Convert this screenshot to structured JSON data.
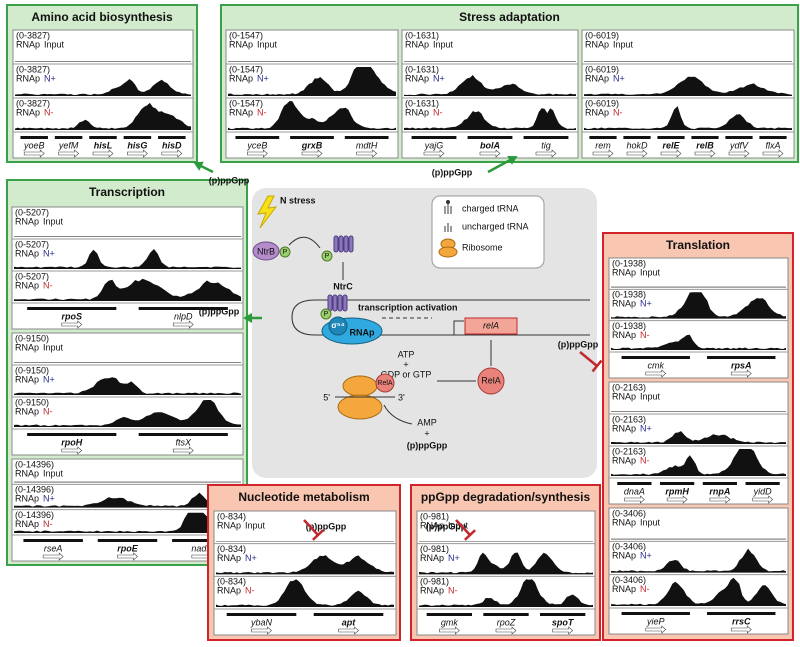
{
  "panels": [
    {
      "title": "Amino acid biosynthesis",
      "loci": [
        {
          "tracks": [
            {
              "range": "(0-3827)",
              "label": "RNAp",
              "condition": "Input"
            },
            {
              "range": "(0-3827)",
              "label": "RNAp",
              "condition": "N+"
            },
            {
              "range": "(0-3827)",
              "label": "RNAp",
              "condition": "N-"
            }
          ],
          "genes": [
            {
              "name": "yoeB",
              "bold": false
            },
            {
              "name": "yefM",
              "bold": false
            },
            {
              "name": "hisL",
              "bold": true
            },
            {
              "name": "hisG",
              "bold": true
            },
            {
              "name": "hisD",
              "bold": true
            }
          ]
        }
      ]
    },
    {
      "title": "Stress adaptation",
      "loci": [
        {
          "tracks": [
            {
              "range": "(0-1547)",
              "label": "RNAp",
              "condition": "Input"
            },
            {
              "range": "(0-1547)",
              "label": "RNAp",
              "condition": "N+"
            },
            {
              "range": "(0-1547)",
              "label": "RNAp",
              "condition": "N-"
            }
          ],
          "genes": [
            {
              "name": "yceB",
              "bold": false
            },
            {
              "name": "grxB",
              "bold": true
            },
            {
              "name": "mdtH",
              "bold": false
            }
          ]
        },
        {
          "tracks": [
            {
              "range": "(0-1631)",
              "label": "RNAp",
              "condition": "Input"
            },
            {
              "range": "(0-1631)",
              "label": "RNAp",
              "condition": "N+"
            },
            {
              "range": "(0-1631)",
              "label": "RNAp",
              "condition": "N-"
            }
          ],
          "genes": [
            {
              "name": "yajG",
              "bold": false
            },
            {
              "name": "bolA",
              "bold": true
            },
            {
              "name": "tig",
              "bold": false
            }
          ]
        },
        {
          "tracks": [
            {
              "range": "(0-6019)",
              "label": "RNAp",
              "condition": "Input"
            },
            {
              "range": "(0-6019)",
              "label": "RNAp",
              "condition": "N+"
            },
            {
              "range": "(0-6019)",
              "label": "RNAp",
              "condition": "N-"
            }
          ],
          "genes": [
            {
              "name": "rem",
              "bold": false
            },
            {
              "name": "hokD",
              "bold": false
            },
            {
              "name": "relE",
              "bold": true
            },
            {
              "name": "relB",
              "bold": true
            },
            {
              "name": "ydfV",
              "bold": false
            },
            {
              "name": "flxA",
              "bold": false
            }
          ]
        }
      ]
    },
    {
      "title": "Transcription",
      "loci": [
        {
          "tracks": [
            {
              "range": "(0-5207)",
              "label": "RNAp",
              "condition": "Input"
            },
            {
              "range": "(0-5207)",
              "label": "RNAp",
              "condition": "N+"
            },
            {
              "range": "(0-5207)",
              "label": "RNAp",
              "condition": "N-"
            }
          ],
          "genes": [
            {
              "name": "rpoS",
              "bold": true
            },
            {
              "name": "nlpD",
              "bold": false
            }
          ]
        },
        {
          "tracks": [
            {
              "range": "(0-9150)",
              "label": "RNAp",
              "condition": "Input"
            },
            {
              "range": "(0-9150)",
              "label": "RNAp",
              "condition": "N+"
            },
            {
              "range": "(0-9150)",
              "label": "RNAp",
              "condition": "N-"
            }
          ],
          "genes": [
            {
              "name": "rpoH",
              "bold": true
            },
            {
              "name": "ftsX",
              "bold": false
            }
          ]
        },
        {
          "tracks": [
            {
              "range": "(0-14396)",
              "label": "RNAp",
              "condition": "Input"
            },
            {
              "range": "(0-14396)",
              "label": "RNAp",
              "condition": "N+"
            },
            {
              "range": "(0-14396)",
              "label": "RNAp",
              "condition": "N-"
            }
          ],
          "genes": [
            {
              "name": "rseA",
              "bold": false
            },
            {
              "name": "rpoE",
              "bold": true
            },
            {
              "name": "nadB",
              "bold": false
            }
          ]
        }
      ]
    },
    {
      "title": "Translation",
      "loci": [
        {
          "tracks": [
            {
              "range": "(0-1938)",
              "label": "RNAp",
              "condition": "Input"
            },
            {
              "range": "(0-1938)",
              "label": "RNAp",
              "condition": "N+"
            },
            {
              "range": "(0-1938)",
              "label": "RNAp",
              "condition": "N-"
            }
          ],
          "genes": [
            {
              "name": "cmk",
              "bold": false
            },
            {
              "name": "rpsA",
              "bold": true
            }
          ]
        },
        {
          "tracks": [
            {
              "range": "(0-2163)",
              "label": "RNAp",
              "condition": "Input"
            },
            {
              "range": "(0-2163)",
              "label": "RNAp",
              "condition": "N+"
            },
            {
              "range": "(0-2163)",
              "label": "RNAp",
              "condition": "N-"
            }
          ],
          "genes": [
            {
              "name": "dnaA",
              "bold": false
            },
            {
              "name": "rpmH",
              "bold": true
            },
            {
              "name": "rnpA",
              "bold": true
            },
            {
              "name": "yidD",
              "bold": false
            }
          ]
        },
        {
          "tracks": [
            {
              "range": "(0-3406)",
              "label": "RNAp",
              "condition": "Input"
            },
            {
              "range": "(0-3406)",
              "label": "RNAp",
              "condition": "N+"
            },
            {
              "range": "(0-3406)",
              "label": "RNAp",
              "condition": "N-"
            }
          ],
          "genes": [
            {
              "name": "yieP",
              "bold": false
            },
            {
              "name": "rrsC",
              "bold": true
            }
          ]
        }
      ]
    },
    {
      "title": "Nucleotide metabolism",
      "loci": [
        {
          "tracks": [
            {
              "range": "(0-834)",
              "label": "RNAp",
              "condition": "Input"
            },
            {
              "range": "(0-834)",
              "label": "RNAp",
              "condition": "N+"
            },
            {
              "range": "(0-834)",
              "label": "RNAp",
              "condition": "N-"
            }
          ],
          "genes": [
            {
              "name": "ybaN",
              "bold": false
            },
            {
              "name": "apt",
              "bold": true
            }
          ]
        }
      ]
    },
    {
      "title": "ppGpp degradation/synthesis",
      "loci": [
        {
          "tracks": [
            {
              "range": "(0-981)",
              "label": "RNAp",
              "condition": "Input"
            },
            {
              "range": "(0-981)",
              "label": "RNAp",
              "condition": "N+"
            },
            {
              "range": "(0-981)",
              "label": "RNAp",
              "condition": "N-"
            }
          ],
          "genes": [
            {
              "name": "gmk",
              "bold": false
            },
            {
              "name": "rpoZ",
              "bold": false
            },
            {
              "name": "spoT",
              "bold": true
            }
          ]
        }
      ]
    }
  ],
  "signals": [
    "(p)ppGpp",
    "(p)ppGpp",
    "(p)ppGpp",
    "(p)ppGpp",
    "(p)ppGpp",
    "(p)ppGpp"
  ],
  "center": {
    "stress": "N stress",
    "ntrb": "NtrB",
    "p1": "P",
    "p2": "P",
    "ntrc1": "NtrC",
    "p3": "P",
    "sigma": "σ⁵⁴",
    "rnap": "RNAp",
    "activation": "transcription activation",
    "gene": "relA",
    "rela1": "RelA",
    "atp": "ATP",
    "plus1": "+",
    "gdp": "GDP or GTP",
    "rela2": "RelA",
    "five": "5'",
    "three": "3'",
    "amp": "AMP",
    "plus2": "+",
    "ppgpp": "(p)ppGpp",
    "legend": {
      "charged": "charged tRNA",
      "uncharged": "uncharged tRNA",
      "ribosome": "Ribosome"
    }
  }
}
